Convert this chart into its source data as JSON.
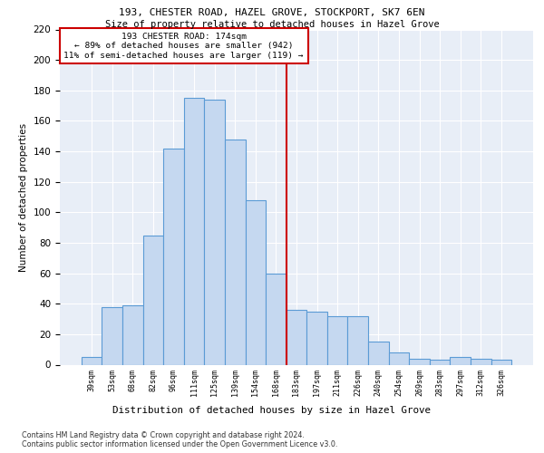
{
  "title1": "193, CHESTER ROAD, HAZEL GROVE, STOCKPORT, SK7 6EN",
  "title2": "Size of property relative to detached houses in Hazel Grove",
  "xlabel": "Distribution of detached houses by size in Hazel Grove",
  "ylabel": "Number of detached properties",
  "categories": [
    "39sqm",
    "53sqm",
    "68sqm",
    "82sqm",
    "96sqm",
    "111sqm",
    "125sqm",
    "139sqm",
    "154sqm",
    "168sqm",
    "183sqm",
    "197sqm",
    "211sqm",
    "226sqm",
    "240sqm",
    "254sqm",
    "269sqm",
    "283sqm",
    "297sqm",
    "312sqm",
    "326sqm"
  ],
  "values": [
    5,
    38,
    39,
    85,
    142,
    175,
    174,
    148,
    108,
    60,
    36,
    35,
    32,
    32,
    15,
    8,
    4,
    3,
    5,
    4,
    3
  ],
  "bar_color": "#c5d8f0",
  "bar_edge_color": "#5b9bd5",
  "vline_x": 9.5,
  "vline_color": "#cc0000",
  "annotation_text": "193 CHESTER ROAD: 174sqm\n← 89% of detached houses are smaller (942)\n11% of semi-detached houses are larger (119) →",
  "annotation_box_color": "#cc0000",
  "ylim": [
    0,
    220
  ],
  "yticks": [
    0,
    20,
    40,
    60,
    80,
    100,
    120,
    140,
    160,
    180,
    200,
    220
  ],
  "bg_color": "#e8eef7",
  "grid_color": "#ffffff",
  "footer1": "Contains HM Land Registry data © Crown copyright and database right 2024.",
  "footer2": "Contains public sector information licensed under the Open Government Licence v3.0."
}
